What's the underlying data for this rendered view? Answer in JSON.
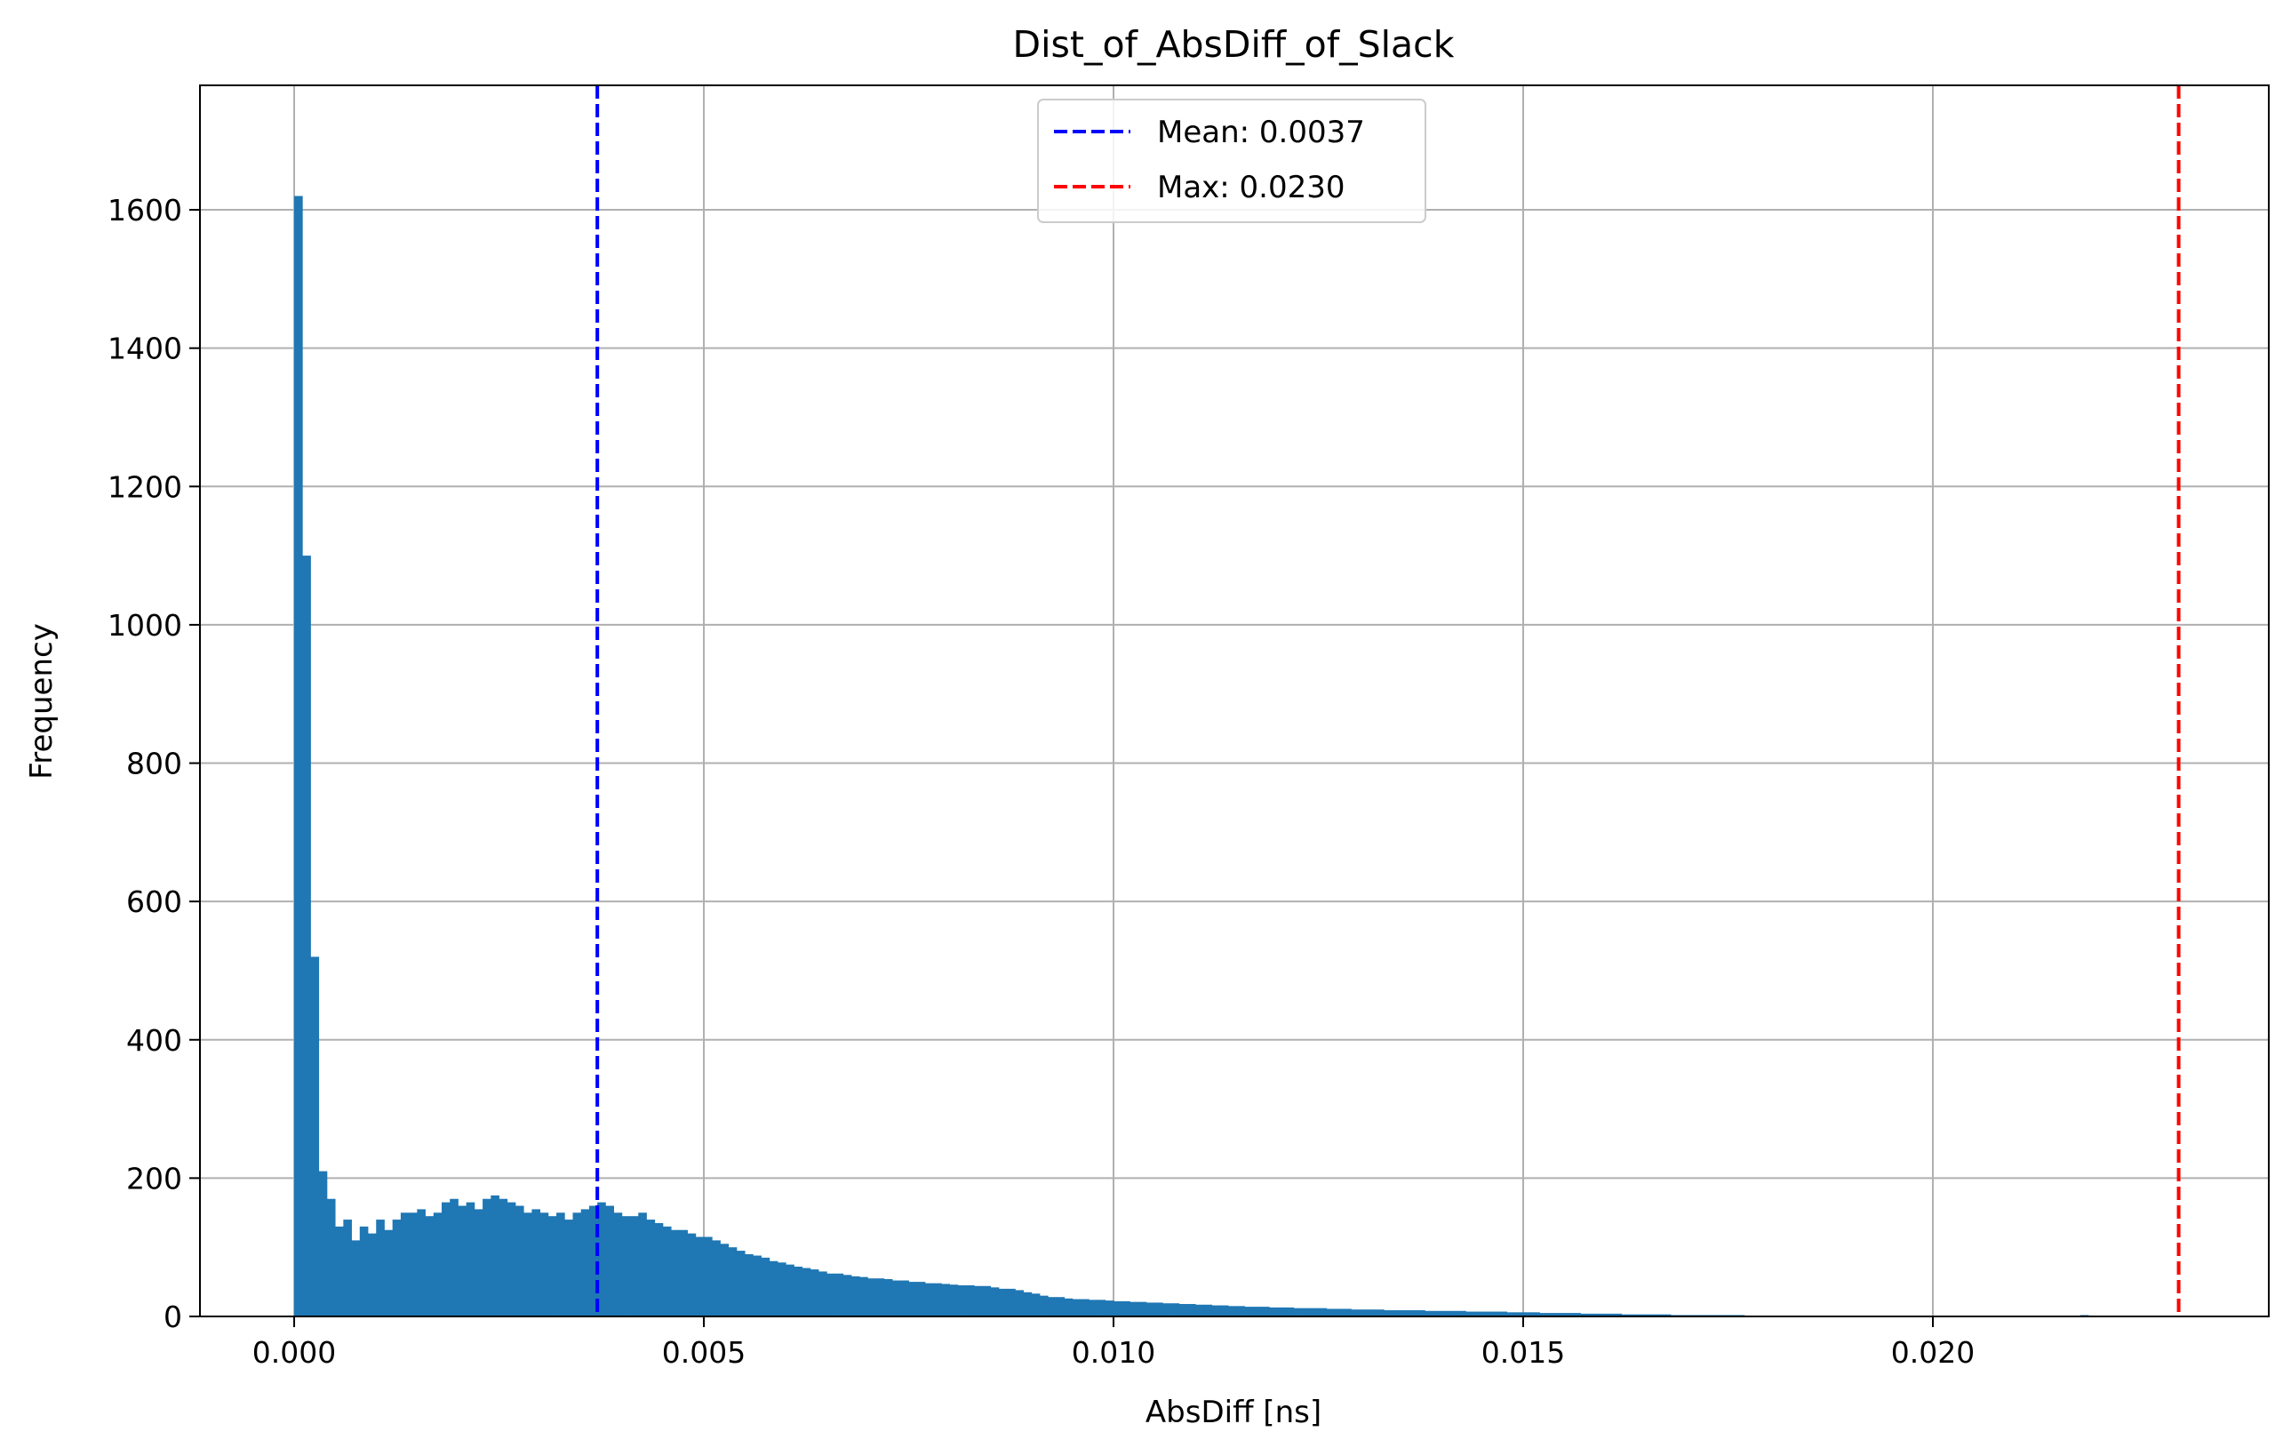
{
  "chart_data": {
    "type": "bar",
    "title": "Dist_of_AbsDiff_of_Slack",
    "xlabel": "AbsDiff [ns]",
    "ylabel": "Frequency",
    "xlim": [
      -0.00115,
      0.0241
    ],
    "ylim": [
      0,
      1780
    ],
    "grid": true,
    "legend_position": "top-center",
    "x_ticks": [
      {
        "value": 0.0,
        "label": "0.000"
      },
      {
        "value": 0.005,
        "label": "0.005"
      },
      {
        "value": 0.01,
        "label": "0.010"
      },
      {
        "value": 0.015,
        "label": "0.015"
      },
      {
        "value": 0.02,
        "label": "0.020"
      }
    ],
    "y_ticks": [
      {
        "value": 0,
        "label": "0"
      },
      {
        "value": 200,
        "label": "200"
      },
      {
        "value": 400,
        "label": "400"
      },
      {
        "value": 600,
        "label": "600"
      },
      {
        "value": 800,
        "label": "800"
      },
      {
        "value": 1000,
        "label": "1000"
      },
      {
        "value": 1200,
        "label": "1200"
      },
      {
        "value": 1400,
        "label": "1400"
      },
      {
        "value": 1600,
        "label": "1600"
      }
    ],
    "bar_color": "#1f77b4",
    "bin_width": 0.0001,
    "bins": {
      "x": [
        0.0,
        0.0001,
        0.0002,
        0.0003,
        0.0004,
        0.0005,
        0.0006,
        0.0007,
        0.0008,
        0.0009,
        0.001,
        0.0011,
        0.0012,
        0.0013,
        0.0014,
        0.0015,
        0.0016,
        0.0017,
        0.0018,
        0.0019,
        0.002,
        0.0021,
        0.0022,
        0.0023,
        0.0024,
        0.0025,
        0.0026,
        0.0027,
        0.0028,
        0.0029,
        0.003,
        0.0031,
        0.0032,
        0.0033,
        0.0034,
        0.0035,
        0.0036,
        0.0037,
        0.0038,
        0.0039,
        0.004,
        0.0041,
        0.0042,
        0.0043,
        0.0044,
        0.0045,
        0.0046,
        0.0047,
        0.0048,
        0.0049,
        0.005,
        0.0051,
        0.0052,
        0.0053,
        0.0054,
        0.0055,
        0.0056,
        0.0057,
        0.0058,
        0.0059,
        0.006,
        0.0061,
        0.0062,
        0.0063,
        0.0064,
        0.0065,
        0.0066,
        0.0067,
        0.0068,
        0.0069,
        0.007,
        0.0071,
        0.0072,
        0.0073,
        0.0074,
        0.0075,
        0.0076,
        0.0077,
        0.0078,
        0.0079,
        0.008,
        0.0081,
        0.0082,
        0.0083,
        0.0084,
        0.0085,
        0.0086,
        0.0087,
        0.0088,
        0.0089,
        0.009,
        0.0091,
        0.0092,
        0.0093,
        0.0094,
        0.0095,
        0.0096,
        0.0097,
        0.0098,
        0.0099,
        0.01,
        0.0101,
        0.0102,
        0.0103,
        0.0104,
        0.0105,
        0.0106,
        0.0107,
        0.0108,
        0.0109,
        0.011,
        0.0111,
        0.0112,
        0.0113,
        0.0114,
        0.0115,
        0.0116,
        0.0117,
        0.0118,
        0.0119,
        0.012,
        0.0121,
        0.0122,
        0.0123,
        0.0124,
        0.0125,
        0.0126,
        0.0127,
        0.0128,
        0.0129,
        0.013,
        0.0131,
        0.0132,
        0.0133,
        0.0134,
        0.0135,
        0.0136,
        0.0137,
        0.0138,
        0.0139,
        0.014,
        0.0141,
        0.0142,
        0.0143,
        0.0144,
        0.0145,
        0.0146,
        0.0147,
        0.0148,
        0.0149,
        0.015,
        0.0151,
        0.0152,
        0.0153,
        0.0154,
        0.0155,
        0.0156,
        0.0157,
        0.0158,
        0.0159,
        0.016,
        0.0161,
        0.0162,
        0.0163,
        0.0164,
        0.0165,
        0.0166,
        0.0167,
        0.0168,
        0.0169,
        0.017,
        0.0171,
        0.0172,
        0.0173,
        0.0174,
        0.0175,
        0.0176,
        0.0177,
        0.0178,
        0.0179,
        0.018,
        0.0181,
        0.0182,
        0.0183,
        0.0184,
        0.0185,
        0.0186,
        0.0187,
        0.0188,
        0.0189,
        0.019,
        0.0191,
        0.0192,
        0.0193,
        0.0194,
        0.0195,
        0.0196,
        0.0197,
        0.0198,
        0.0199,
        0.02,
        0.0201,
        0.0202,
        0.0203,
        0.0204,
        0.0205,
        0.0206,
        0.0207,
        0.0208,
        0.0209,
        0.021,
        0.0211,
        0.0212,
        0.0213,
        0.0214,
        0.0215,
        0.0216,
        0.0217,
        0.0218,
        0.0219
      ],
      "counts": [
        1620,
        1100,
        520,
        210,
        170,
        130,
        140,
        110,
        130,
        120,
        140,
        125,
        140,
        150,
        150,
        155,
        145,
        150,
        165,
        170,
        160,
        165,
        155,
        170,
        175,
        170,
        165,
        160,
        150,
        155,
        150,
        145,
        150,
        140,
        150,
        155,
        160,
        165,
        160,
        150,
        145,
        145,
        150,
        140,
        135,
        130,
        125,
        125,
        120,
        115,
        115,
        110,
        105,
        100,
        95,
        90,
        88,
        85,
        80,
        78,
        75,
        72,
        70,
        68,
        65,
        62,
        62,
        60,
        58,
        57,
        55,
        55,
        54,
        52,
        52,
        50,
        50,
        48,
        48,
        47,
        46,
        45,
        45,
        44,
        44,
        42,
        40,
        40,
        38,
        35,
        33,
        30,
        28,
        28,
        26,
        25,
        25,
        24,
        24,
        23,
        22,
        22,
        21,
        21,
        20,
        20,
        19,
        19,
        18,
        18,
        17,
        17,
        16,
        16,
        15,
        15,
        14,
        14,
        14,
        13,
        13,
        13,
        12,
        12,
        12,
        12,
        11,
        11,
        11,
        10,
        10,
        10,
        10,
        9,
        9,
        9,
        9,
        9,
        8,
        8,
        8,
        8,
        8,
        7,
        7,
        7,
        7,
        7,
        6,
        6,
        6,
        6,
        5,
        5,
        5,
        5,
        5,
        4,
        4,
        4,
        4,
        4,
        3,
        3,
        3,
        3,
        3,
        3,
        2,
        2,
        2,
        2,
        2,
        2,
        2,
        2,
        2,
        1,
        1,
        1,
        1,
        1,
        1,
        1,
        1,
        1,
        1,
        1,
        1,
        1,
        1,
        1,
        1,
        1,
        1,
        1,
        1,
        1,
        1,
        1,
        0,
        1,
        0,
        1,
        0,
        0,
        0,
        0,
        0,
        0,
        1,
        0,
        0,
        0,
        0,
        0,
        0,
        0,
        2,
        0
      ]
    },
    "reference_lines": [
      {
        "name": "Mean: 0.0037",
        "value": 0.0037,
        "color": "#0000ff"
      },
      {
        "name": "Max: 0.0230",
        "value": 0.023,
        "color": "#ff0000"
      }
    ]
  }
}
